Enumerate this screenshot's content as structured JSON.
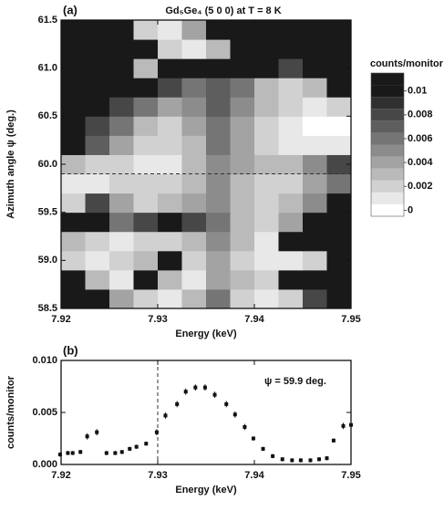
{
  "chart_data": [
    {
      "type": "contour",
      "panel_label": "(a)",
      "title": "Gd₅Ge₄   (5 0 0) at T = 8 K",
      "x_label": "Energy (keV)",
      "y_label": "Azimuth angle ψ (deg.)",
      "x": [
        7.92125,
        7.92375,
        7.92625,
        7.92875,
        7.93125,
        7.93375,
        7.93625,
        7.93875,
        7.94125,
        7.94375,
        7.94625,
        7.94875
      ],
      "y": [
        58.6,
        58.8,
        59.0,
        59.2,
        59.4,
        59.6,
        59.8,
        60.0,
        60.2,
        60.4,
        60.6,
        60.8,
        61.0,
        61.2,
        61.4
      ],
      "z": [
        [
          0.01,
          0.01,
          0.004,
          0.002,
          0.001,
          0.003,
          0.006,
          0.002,
          0.001,
          0.002,
          0.008,
          0.01
        ],
        [
          0.01,
          0.003,
          0.001,
          0.01,
          0.003,
          0.001,
          0.004,
          0.003,
          0.002,
          0.01,
          0.01,
          0.01
        ],
        [
          0.002,
          0.001,
          0.002,
          0.003,
          0.01,
          0.002,
          0.004,
          0.002,
          0.001,
          0.001,
          0.002,
          0.01
        ],
        [
          0.003,
          0.002,
          0.001,
          0.002,
          0.002,
          0.003,
          0.005,
          0.003,
          0.001,
          0.01,
          0.01,
          0.01
        ],
        [
          0.01,
          0.01,
          0.006,
          0.008,
          0.01,
          0.008,
          0.006,
          0.003,
          0.002,
          0.004,
          0.01,
          0.01
        ],
        [
          0.002,
          0.008,
          0.004,
          0.002,
          0.003,
          0.004,
          0.005,
          0.003,
          0.002,
          0.003,
          0.005,
          0.01
        ],
        [
          0.001,
          0.001,
          0.002,
          0.002,
          0.002,
          0.003,
          0.005,
          0.003,
          0.002,
          0.002,
          0.004,
          0.006
        ],
        [
          0.003,
          0.002,
          0.002,
          0.001,
          0.001,
          0.003,
          0.005,
          0.004,
          0.003,
          0.003,
          0.005,
          0.008
        ],
        [
          0.01,
          0.007,
          0.004,
          0.002,
          0.002,
          0.003,
          0.006,
          0.004,
          0.002,
          0.001,
          0.001,
          0.001
        ],
        [
          0.01,
          0.008,
          0.006,
          0.003,
          0.002,
          0.004,
          0.006,
          0.004,
          0.002,
          0.001,
          0,
          0
        ],
        [
          0.01,
          0.01,
          0.008,
          0.006,
          0.004,
          0.005,
          0.007,
          0.005,
          0.003,
          0.002,
          0.001,
          0.002
        ],
        [
          0.01,
          0.01,
          0.01,
          0.01,
          0.008,
          0.006,
          0.007,
          0.006,
          0.003,
          0.002,
          0.003,
          0.01
        ],
        [
          0.01,
          0.01,
          0.01,
          0.003,
          0.01,
          0.01,
          0.01,
          0.01,
          0.01,
          0.008,
          0.01,
          0.01
        ],
        [
          0.01,
          0.01,
          0.01,
          0.01,
          0.002,
          0.001,
          0.003,
          0.01,
          0.01,
          0.01,
          0.01,
          0.01
        ],
        [
          0.01,
          0.01,
          0.01,
          0.002,
          0.001,
          0.004,
          0.01,
          0.01,
          0.01,
          0.01,
          0.01,
          0.01
        ]
      ],
      "xlim": [
        7.92,
        7.95
      ],
      "xticks": [
        7.92,
        7.93,
        7.94,
        7.95
      ],
      "ylim": [
        58.5,
        61.5
      ],
      "yticks": [
        58.5,
        {
          "value": 59,
          "label": "59.0"
        },
        59.5,
        {
          "value": 60,
          "label": "60.0"
        },
        60.5,
        {
          "value": 61,
          "label": "61.0"
        },
        61.5
      ],
      "hline": 59.9,
      "colorbar_label": "counts/monitor",
      "clim": [
        -0.0005,
        0.0115
      ],
      "cticks": [
        0.01,
        0.008,
        0.006,
        0.004,
        0.002,
        0
      ]
    },
    {
      "type": "errorbar",
      "panel_label": "(b)",
      "x_label": "Energy (keV)",
      "y_label": "counts/monitor",
      "annotation": "ψ  = 59.9 deg.",
      "color": "#111111",
      "x": [
        7.9199,
        7.9207,
        7.9212,
        7.922,
        7.9227,
        7.9237,
        7.9247,
        7.9256,
        7.9263,
        7.9271,
        7.9278,
        7.9288,
        7.9299,
        7.9308,
        7.932,
        7.9329,
        7.9339,
        7.9349,
        7.9359,
        7.9371,
        7.938,
        7.939,
        7.9399,
        7.9409,
        7.9419,
        7.9429,
        7.9439,
        7.9448,
        7.9458,
        7.9467,
        7.9475,
        7.9482,
        7.9492,
        7.95
      ],
      "values": [
        0.00096,
        0.0011,
        0.0011,
        0.0012,
        0.0027,
        0.0031,
        0.0011,
        0.0011,
        0.0012,
        0.0015,
        0.0017,
        0.002,
        0.0031,
        0.0047,
        0.0058,
        0.007,
        0.0074,
        0.0074,
        0.0067,
        0.0058,
        0.0048,
        0.0036,
        0.0025,
        0.0015,
        0.0008,
        0.0005,
        0.0004,
        0.0004,
        0.0004,
        0.0005,
        0.0006,
        0.0023,
        0.0037,
        0.0038
      ],
      "errors": [
        0.0002,
        0.0002,
        0.0002,
        0.0002,
        0.0003,
        0.0003,
        0.0002,
        0.0002,
        0.0002,
        0.0002,
        0.0002,
        0.0002,
        0.0003,
        0.0003,
        0.0003,
        0.0003,
        0.0003,
        0.0003,
        0.0003,
        0.0003,
        0.0003,
        0.0003,
        0.0002,
        0.0002,
        0.0002,
        0.0002,
        0.0002,
        0.0002,
        0.0002,
        0.0002,
        0.0002,
        0.0002,
        0.0003,
        0.0003
      ],
      "xlim": [
        7.92,
        7.95
      ],
      "xticks": [
        7.92,
        7.93,
        7.94,
        7.95
      ],
      "ylim": [
        0,
        0.01
      ],
      "yticks": [
        {
          "value": 0,
          "label": "0.000"
        },
        {
          "value": 0.005,
          "label": "0.005"
        },
        {
          "value": 0.01,
          "label": "0.010"
        }
      ],
      "vline": 7.93
    }
  ]
}
